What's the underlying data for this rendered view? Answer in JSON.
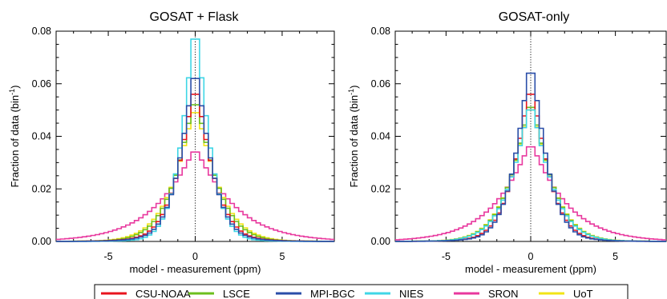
{
  "chart_data": [
    {
      "type": "histogram",
      "title": "GOSAT + Flask",
      "xlabel": "model - measurement (ppm)",
      "ylabel": "Fraction of data (bin",
      "ylabel_sup": "-1",
      "ylabel_close": ")",
      "xlim": [
        -8,
        8
      ],
      "ylim": [
        0,
        0.08
      ],
      "xticks": [
        -5,
        0,
        5
      ],
      "xtick_labels": [
        "-5",
        "0",
        "5"
      ],
      "yticks": [
        0,
        0.02,
        0.04,
        0.06,
        0.08
      ],
      "ytick_labels": [
        "0.00",
        "0.02",
        "0.04",
        "0.06",
        "0.08"
      ],
      "zero_line": "dotted vertical at x = 0",
      "series": [
        {
          "name": "CSU-NOAA",
          "color": "#e8141e",
          "peak": 0.056,
          "sigma": 1.22,
          "gamma": 0.9,
          "p": 1.3
        },
        {
          "name": "LSCE",
          "color": "#6cbf1e",
          "peak": 0.052,
          "sigma": 1.38,
          "gamma": 1.0,
          "p": 1.25
        },
        {
          "name": "MPI-BGC",
          "color": "#2a4ea8",
          "peak": 0.062,
          "sigma": 1.12,
          "gamma": 0.8,
          "p": 1.3
        },
        {
          "name": "NIES",
          "color": "#3fd6e6",
          "peak": 0.077,
          "sigma": 1.0,
          "gamma": 0.6,
          "p": 1.3
        },
        {
          "name": "SRON",
          "color": "#e8389e",
          "peak": 0.034,
          "sigma": 2.35,
          "gamma": 1.8,
          "p": 1.1
        },
        {
          "name": "UoT",
          "color": "#f2e416",
          "peak": 0.049,
          "sigma": 1.48,
          "gamma": 1.1,
          "p": 1.25
        }
      ]
    },
    {
      "type": "histogram",
      "title": "GOSAT-only",
      "xlabel": "model - measurement (ppm)",
      "ylabel": "Fraction of data (bin",
      "ylabel_sup": "-1",
      "ylabel_close": ")",
      "xlim": [
        -8,
        8
      ],
      "ylim": [
        0,
        0.08
      ],
      "xticks": [
        -5,
        0,
        5
      ],
      "xtick_labels": [
        "-5",
        "0",
        "5"
      ],
      "yticks": [
        0,
        0.02,
        0.04,
        0.06,
        0.08
      ],
      "ytick_labels": [
        "0.00",
        "0.02",
        "0.04",
        "0.06",
        "0.08"
      ],
      "zero_line": "dotted vertical at x = 0",
      "series": [
        {
          "name": "CSU-NOAA",
          "color": "#e8141e",
          "peak": 0.056,
          "sigma": 1.25,
          "gamma": 0.9,
          "p": 1.3
        },
        {
          "name": "LSCE",
          "color": "#6cbf1e",
          "peak": 0.051,
          "sigma": 1.42,
          "gamma": 1.0,
          "p": 1.25
        },
        {
          "name": "MPI-BGC",
          "color": "#2a4ea8",
          "peak": 0.064,
          "sigma": 1.15,
          "gamma": 0.8,
          "p": 1.3
        },
        {
          "name": "NIES",
          "color": "#3fd6e6",
          "peak": 0.05,
          "sigma": 1.4,
          "gamma": 1.0,
          "p": 1.25
        },
        {
          "name": "SRON",
          "color": "#e8389e",
          "peak": 0.036,
          "sigma": 2.2,
          "gamma": 1.7,
          "p": 1.1
        },
        {
          "name": "UoT",
          "color": "#f2e416",
          "peak": 0.05,
          "sigma": 1.45,
          "gamma": 1.05,
          "p": 1.25
        }
      ]
    }
  ],
  "legend": {
    "placement": "bottom-center",
    "items": [
      {
        "label": "CSU-NOAA",
        "color": "#e8141e"
      },
      {
        "label": "LSCE",
        "color": "#6cbf1e"
      },
      {
        "label": "MPI-BGC",
        "color": "#2a4ea8"
      },
      {
        "label": "NIES",
        "color": "#3fd6e6"
      },
      {
        "label": "SRON",
        "color": "#e8389e"
      },
      {
        "label": "UoT",
        "color": "#f2e416"
      }
    ]
  }
}
